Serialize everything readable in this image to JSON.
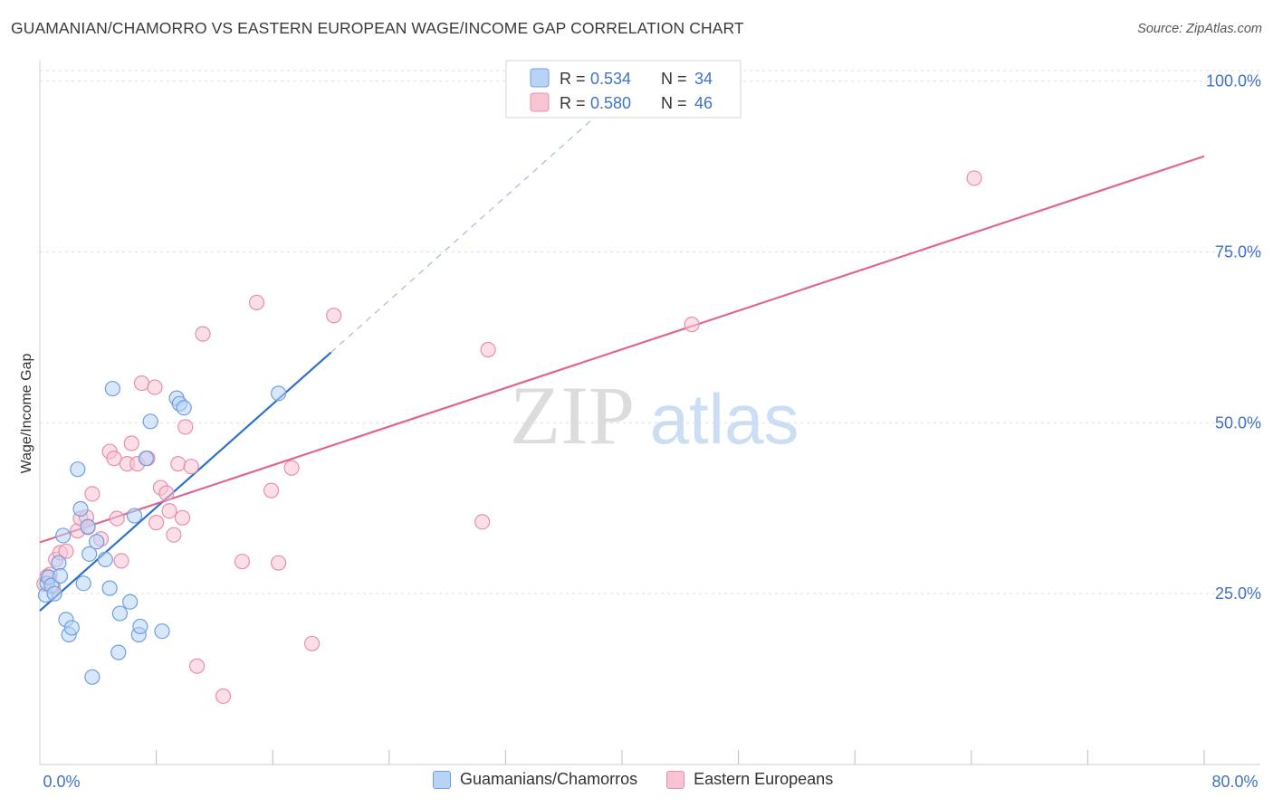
{
  "header": {
    "title": "GUAMANIAN/CHAMORRO VS EASTERN EUROPEAN WAGE/INCOME GAP CORRELATION CHART",
    "source": "Source: ZipAtlas.com"
  },
  "watermark": {
    "zip": "ZIP",
    "atlas": "atlas"
  },
  "legend_top": {
    "rows": [
      {
        "r_label": "R = ",
        "r_value": "0.534",
        "n_label": "N = ",
        "n_value": "34"
      },
      {
        "r_label": "R = ",
        "r_value": "0.580",
        "n_label": "N = ",
        "n_value": "46"
      }
    ]
  },
  "legend_bottom": {
    "items": [
      {
        "label": "Guamanians/Chamorros"
      },
      {
        "label": "Eastern Europeans"
      }
    ]
  },
  "colors": {
    "blue_fill": "#b8d3f5",
    "blue_stroke": "#6f9fe0",
    "blue_line": "#2a6fd1",
    "pink_fill": "#f8c4d4",
    "pink_stroke": "#e98fab",
    "pink_line": "#e06690",
    "tick_label": "#3f72c8"
  },
  "chart_data": {
    "type": "scatter",
    "title": "GUAMANIAN/CHAMORRO VS EASTERN EUROPEAN WAGE/INCOME GAP CORRELATION CHART",
    "xlabel": "",
    "ylabel": "Wage/Income Gap",
    "xlim": [
      0,
      80
    ],
    "ylim": [
      0,
      103
    ],
    "x_tick_labels": [
      "0.0%",
      "80.0%"
    ],
    "y_ticks": [
      25,
      50,
      75,
      100
    ],
    "y_tick_labels": [
      "25.0%",
      "50.0%",
      "75.0%",
      "100.0%"
    ],
    "grid": true,
    "legend_position": "top-center",
    "series": [
      {
        "name": "Guamanians/Chamorros",
        "r": 0.534,
        "n": 34,
        "points": [
          [
            0.4,
            24.8
          ],
          [
            0.5,
            26.5
          ],
          [
            0.6,
            27.4
          ],
          [
            0.8,
            26.2
          ],
          [
            1.0,
            25.0
          ],
          [
            1.3,
            29.5
          ],
          [
            1.4,
            27.6
          ],
          [
            1.6,
            33.5
          ],
          [
            1.8,
            21.2
          ],
          [
            2.0,
            19.0
          ],
          [
            2.6,
            43.2
          ],
          [
            2.8,
            37.4
          ],
          [
            3.0,
            26.5
          ],
          [
            3.4,
            30.8
          ],
          [
            3.6,
            12.8
          ],
          [
            3.9,
            32.6
          ],
          [
            4.5,
            30.0
          ],
          [
            4.8,
            25.8
          ],
          [
            5.0,
            55.0
          ],
          [
            5.4,
            16.4
          ],
          [
            5.5,
            22.1
          ],
          [
            6.2,
            23.8
          ],
          [
            6.5,
            36.4
          ],
          [
            6.8,
            19.0
          ],
          [
            6.9,
            20.2
          ],
          [
            7.3,
            44.8
          ],
          [
            7.6,
            50.2
          ],
          [
            8.4,
            19.5
          ],
          [
            2.2,
            20.0
          ],
          [
            9.4,
            53.6
          ],
          [
            9.6,
            52.8
          ],
          [
            9.9,
            52.2
          ],
          [
            16.4,
            54.3
          ],
          [
            3.3,
            34.8
          ]
        ],
        "trend": {
          "x1": 0.0,
          "y1": 22.5,
          "x2": 20.0,
          "y2": 60.3,
          "dash_x2": 38.0,
          "dash_y2": 94.5
        }
      },
      {
        "name": "Eastern Europeans",
        "r": 0.58,
        "n": 46,
        "points": [
          [
            0.3,
            26.4
          ],
          [
            0.5,
            27.5
          ],
          [
            0.7,
            27.8
          ],
          [
            0.9,
            26.0
          ],
          [
            1.1,
            30.0
          ],
          [
            1.4,
            31.0
          ],
          [
            1.8,
            31.2
          ],
          [
            2.6,
            34.2
          ],
          [
            2.8,
            36.0
          ],
          [
            3.2,
            36.2
          ],
          [
            3.3,
            34.7
          ],
          [
            3.6,
            39.6
          ],
          [
            4.2,
            33.0
          ],
          [
            4.8,
            45.8
          ],
          [
            5.1,
            44.8
          ],
          [
            5.3,
            36.0
          ],
          [
            5.6,
            29.8
          ],
          [
            6.0,
            44.0
          ],
          [
            6.3,
            47.0
          ],
          [
            6.7,
            44.0
          ],
          [
            7.0,
            55.8
          ],
          [
            7.4,
            44.8
          ],
          [
            7.9,
            55.2
          ],
          [
            8.0,
            35.4
          ],
          [
            8.3,
            40.5
          ],
          [
            8.7,
            39.7
          ],
          [
            8.9,
            37.1
          ],
          [
            9.2,
            33.6
          ],
          [
            9.5,
            44.0
          ],
          [
            9.8,
            36.1
          ],
          [
            10.0,
            49.4
          ],
          [
            10.8,
            14.4
          ],
          [
            11.2,
            63.0
          ],
          [
            12.6,
            10.0
          ],
          [
            13.9,
            29.7
          ],
          [
            14.9,
            67.6
          ],
          [
            15.9,
            40.1
          ],
          [
            16.4,
            29.5
          ],
          [
            17.3,
            43.4
          ],
          [
            18.7,
            17.7
          ],
          [
            20.2,
            65.7
          ],
          [
            30.4,
            35.5
          ],
          [
            30.8,
            60.7
          ],
          [
            44.8,
            64.4
          ],
          [
            64.2,
            85.8
          ],
          [
            10.4,
            43.6
          ]
        ],
        "trend": {
          "x1": 0.0,
          "y1": 32.5,
          "x2": 80.0,
          "y2": 89.0
        }
      }
    ]
  }
}
